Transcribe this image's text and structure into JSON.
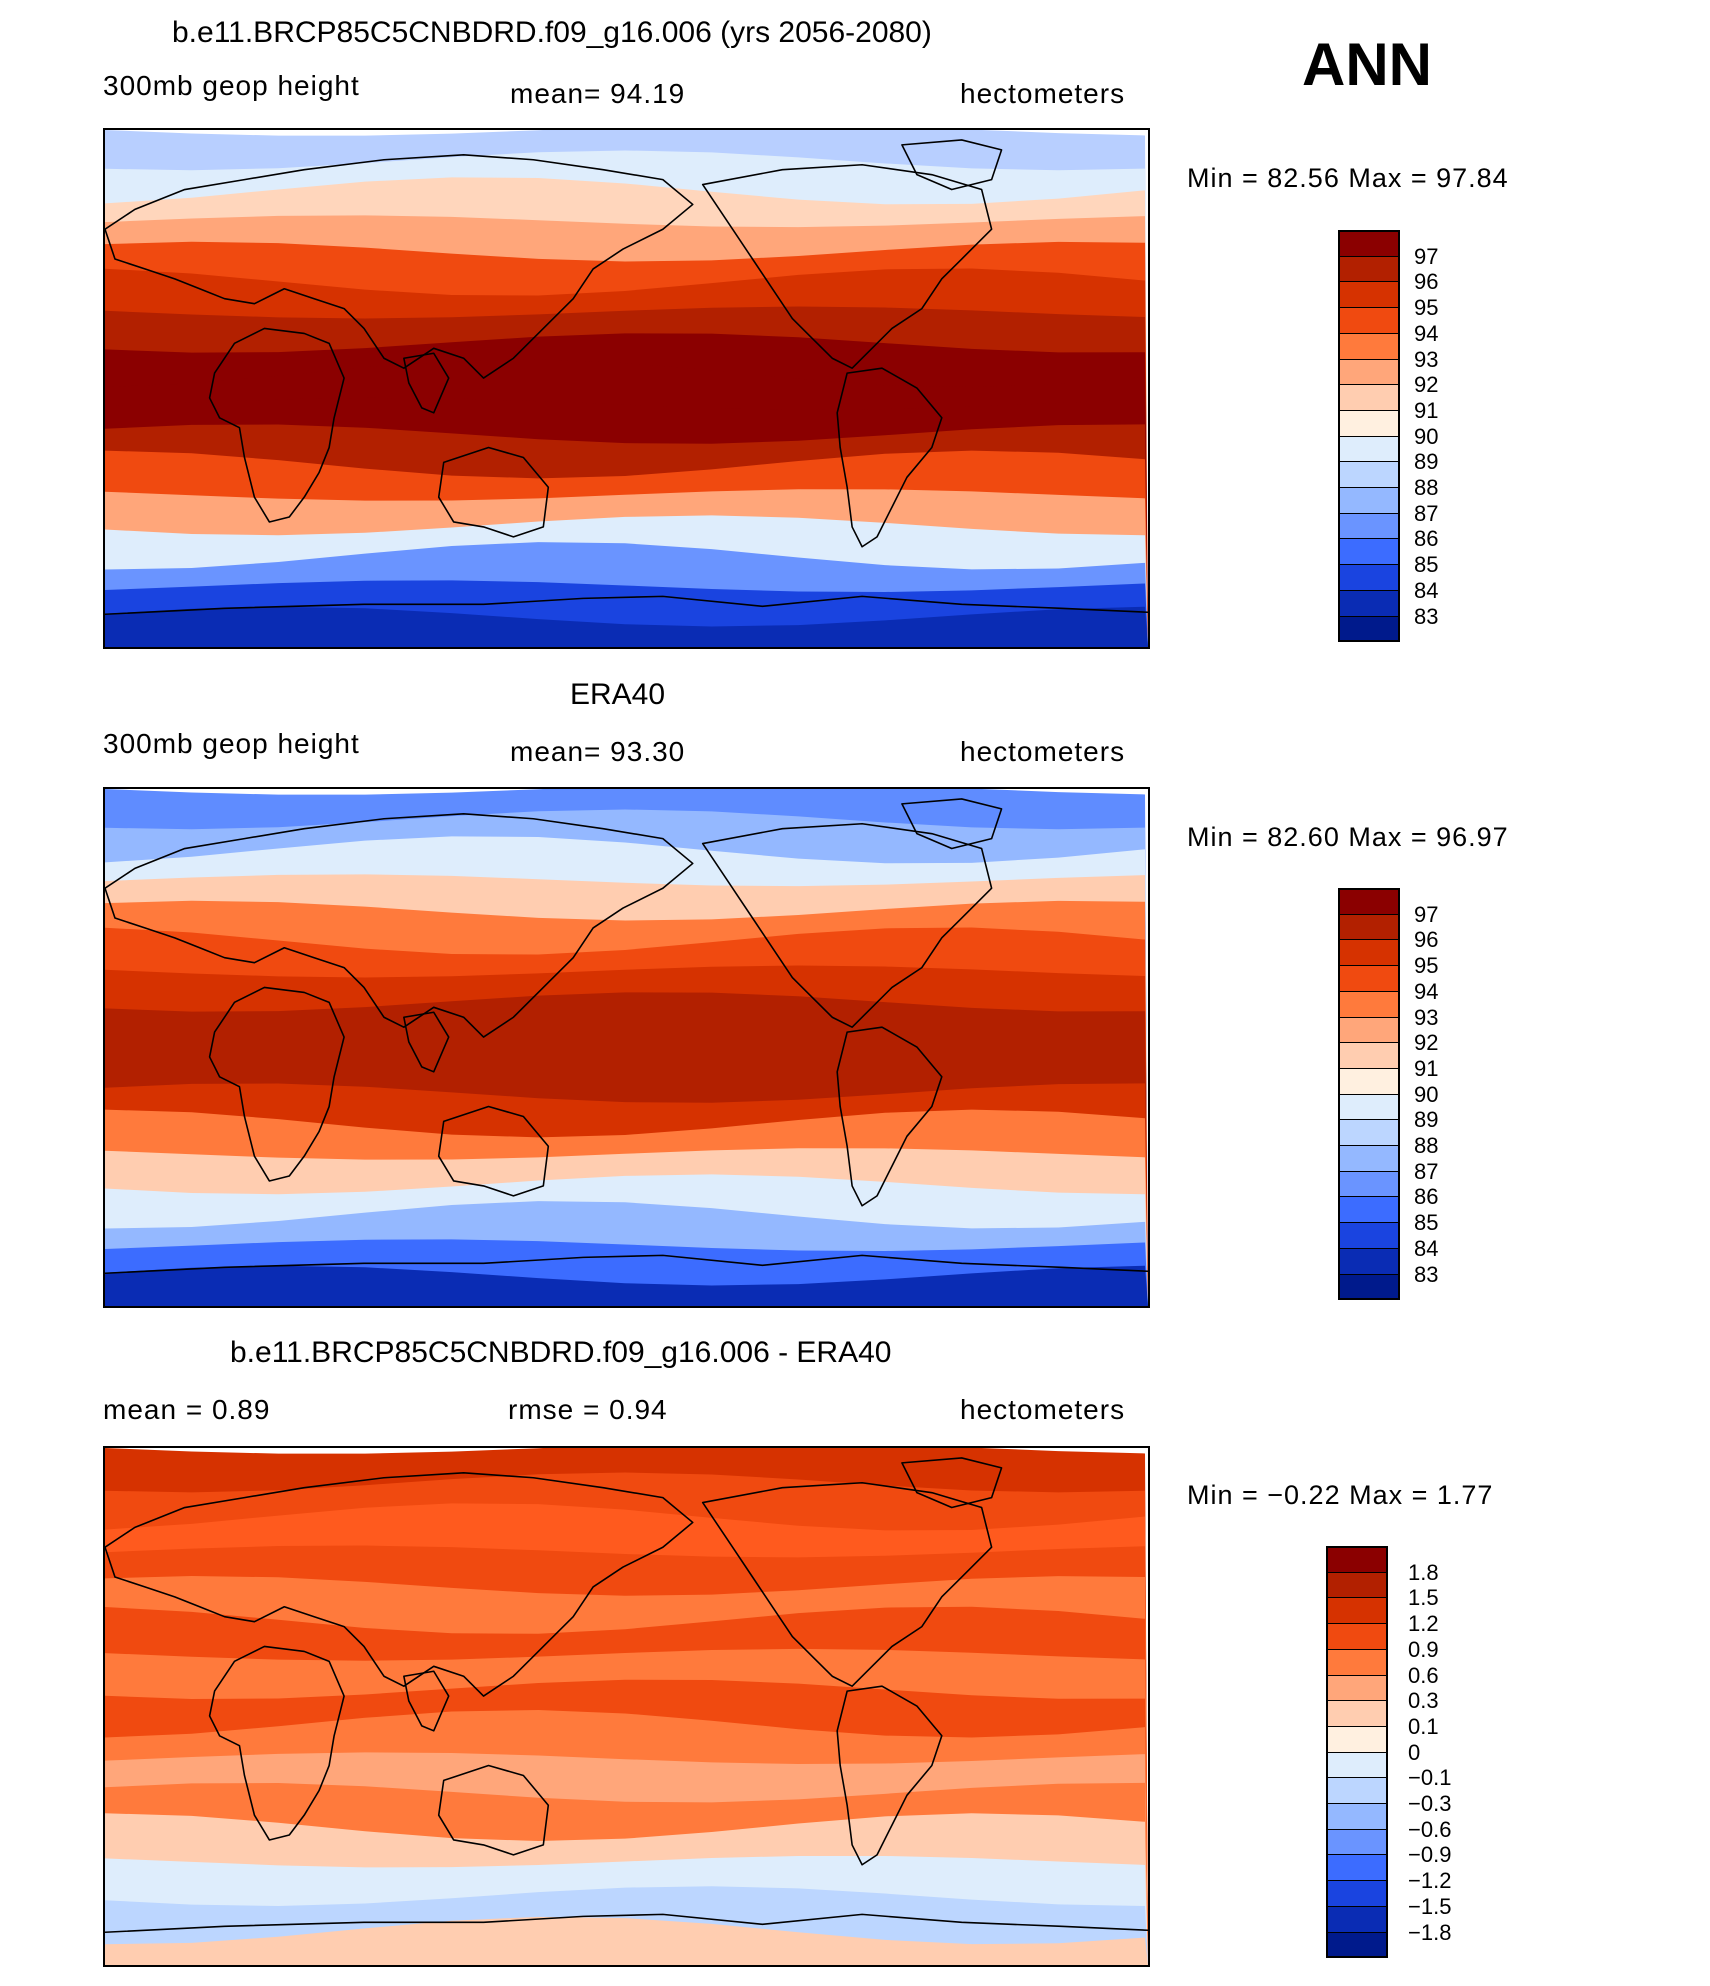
{
  "season": "ANN",
  "panels": [
    {
      "title": "b.e11.BRCP85C5CNBDRD.f09_g16.006 (yrs 2056-2080)",
      "left": "300mb geop height",
      "center": "mean=  94.19",
      "right": "hectometers",
      "minmax": "Min =   82.56  Max =   97.84",
      "colorbar": {
        "labels": [
          "97",
          "96",
          "95",
          "94",
          "93",
          "92",
          "91",
          "90",
          "89",
          "88",
          "87",
          "86",
          "85",
          "84",
          "83"
        ],
        "colors": [
          "#8b0000",
          "#b22000",
          "#d63200",
          "#f04a10",
          "#ff7a3c",
          "#ffa67a",
          "#ffcdb0",
          "#fff0e0",
          "#deedfc",
          "#bcd6ff",
          "#94b8ff",
          "#6a94ff",
          "#3c6cff",
          "#1a44e0",
          "#0a2cb4",
          "#001a8c"
        ]
      },
      "map_bands": [
        "#b8cfff",
        "#deedfc",
        "#ffd6bc",
        "#ffa67a",
        "#f04a10",
        "#d63200",
        "#b22000",
        "#8b0000",
        "#8b0000",
        "#8b0000",
        "#b22000",
        "#f04a10",
        "#ffa67a",
        "#deedfc",
        "#6a94ff",
        "#1a44e0",
        "#0a2cb4"
      ]
    },
    {
      "title": "ERA40",
      "left": "300mb geop height",
      "center": "mean=  93.30",
      "right": "hectometers",
      "minmax": "Min =   82.60  Max =   96.97",
      "colorbar": {
        "labels": [
          "97",
          "96",
          "95",
          "94",
          "93",
          "92",
          "91",
          "90",
          "89",
          "88",
          "87",
          "86",
          "85",
          "84",
          "83"
        ],
        "colors": [
          "#8b0000",
          "#b22000",
          "#d63200",
          "#f04a10",
          "#ff7a3c",
          "#ffa67a",
          "#ffcdb0",
          "#fff0e0",
          "#deedfc",
          "#bcd6ff",
          "#94b8ff",
          "#6a94ff",
          "#3c6cff",
          "#1a44e0",
          "#0a2cb4",
          "#001a8c"
        ]
      },
      "map_bands": [
        "#5f8cff",
        "#94b8ff",
        "#deedfc",
        "#ffcdb0",
        "#ff7a3c",
        "#f04a10",
        "#d63200",
        "#b22000",
        "#b22000",
        "#b22000",
        "#d63200",
        "#ff7a3c",
        "#ffcdb0",
        "#deedfc",
        "#94b8ff",
        "#3c6cff",
        "#0a2cb4"
      ]
    },
    {
      "title": "b.e11.BRCP85C5CNBDRD.f09_g16.006 - ERA40",
      "left": "mean =     0.89",
      "center": "rmse =     0.94",
      "right": "hectometers",
      "minmax": "Min =   −0.22  Max =     1.77",
      "colorbar": {
        "labels": [
          "1.8",
          "1.5",
          "1.2",
          "0.9",
          "0.6",
          "0.3",
          "0.1",
          "0",
          "−0.1",
          "−0.3",
          "−0.6",
          "−0.9",
          "−1.2",
          "−1.5",
          "−1.8"
        ],
        "colors": [
          "#8b0000",
          "#b22000",
          "#d63200",
          "#f04a10",
          "#ff7a3c",
          "#ffa67a",
          "#ffcdb0",
          "#fff0e0",
          "#deedfc",
          "#bcd6ff",
          "#94b8ff",
          "#6a94ff",
          "#3c6cff",
          "#1a44e0",
          "#0a2cb4",
          "#001a8c"
        ]
      },
      "map_bands": [
        "#d63200",
        "#f04a10",
        "#ff5a1e",
        "#f04a10",
        "#ff7a3c",
        "#f04a10",
        "#ff7a3c",
        "#f04a10",
        "#ff7a3c",
        "#ffa67a",
        "#ff7a3c",
        "#ffcdb0",
        "#deedfc",
        "#bcd6ff",
        "#ffcdb0"
      ]
    }
  ]
}
